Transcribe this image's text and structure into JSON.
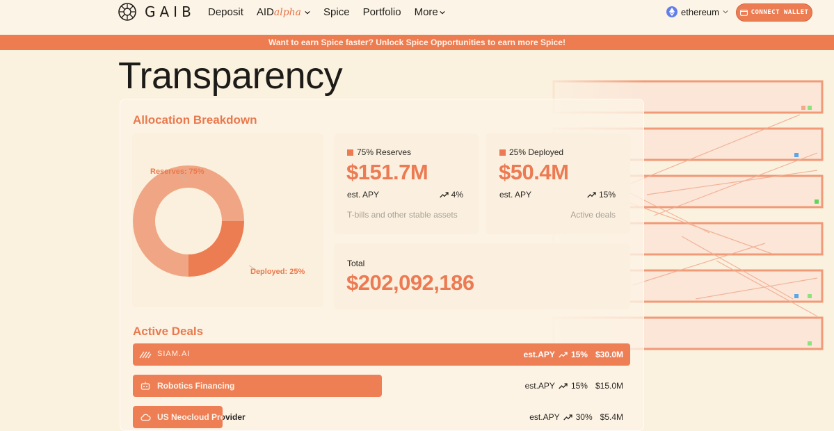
{
  "header": {
    "logo_text": "GAIB",
    "nav": [
      {
        "label": "Deposit"
      },
      {
        "label": "AID",
        "suffix": "alpha"
      },
      {
        "label": "Spice"
      },
      {
        "label": "Portfolio"
      },
      {
        "label": "More"
      }
    ],
    "network": "ethereum",
    "connect_wallet": "CONNECT WALLET"
  },
  "banner": "Want to earn Spice faster? Unlock Spice Opportunities to earn more Spice!",
  "page_title": "Transparency",
  "allocation": {
    "title": "Allocation Breakdown",
    "donut_label_reserves": "Reserves: 75%",
    "donut_label_deployed": "Deployed: 25%",
    "reserves_fraction": 0.75,
    "deployed_fraction": 0.25,
    "reserves": {
      "legend": "75% Reserves",
      "value": "$151.7M",
      "apy_label": "est. APY",
      "apy_value": "4%",
      "description": "T-bills and other stable assets"
    },
    "deployed": {
      "legend": "25% Deployed",
      "value": "$50.4M",
      "apy_label": "est. APY",
      "apy_value": "15%",
      "description": "Active deals"
    },
    "total": {
      "label": "Total",
      "value": "$202,092,186"
    }
  },
  "deals": {
    "title": "Active Deals",
    "items": [
      {
        "name": "SIAM.AI",
        "apy_label": "est.APY",
        "apy": "15%",
        "amount": "$30.0M",
        "bar_fraction": 1.0
      },
      {
        "name": "Robotics Financing",
        "apy_label": "est.APY",
        "apy": "15%",
        "amount": "$15.0M",
        "bar_fraction": 0.5
      },
      {
        "name": "US Neocloud Provider",
        "apy_label": "est.APY",
        "apy": "30%",
        "amount": "$5.4M",
        "bar_fraction": 0.18
      }
    ]
  },
  "colors": {
    "accent": "#ec7a52",
    "accent_light": "#f0a684",
    "background": "#fbf1df"
  }
}
